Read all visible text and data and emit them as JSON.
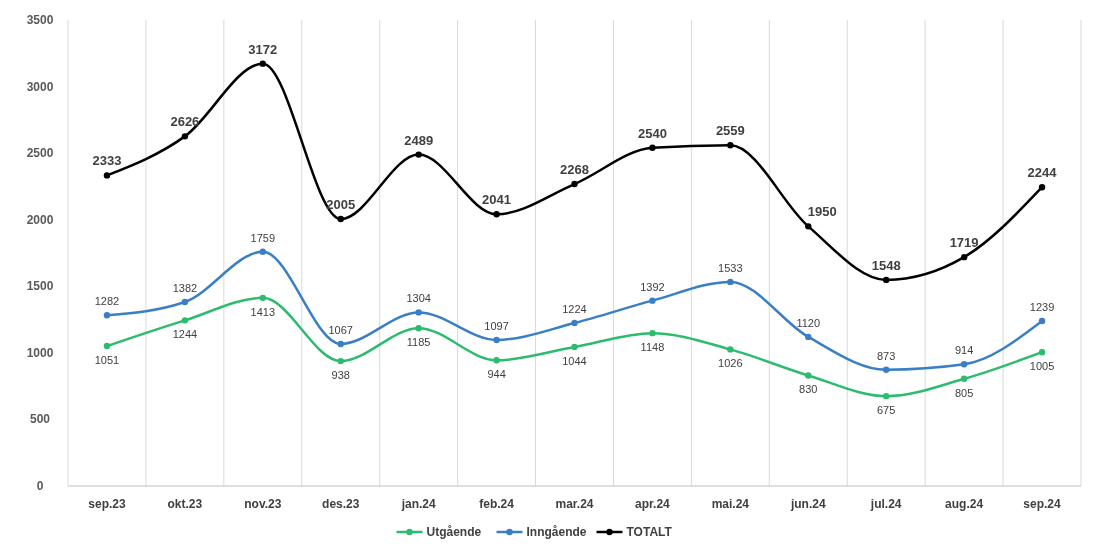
{
  "chart_data": {
    "type": "line",
    "categories": [
      "sep.23",
      "okt.23",
      "nov.23",
      "des.23",
      "jan.24",
      "feb.24",
      "mar.24",
      "apr.24",
      "mai.24",
      "jun.24",
      "jul.24",
      "aug.24",
      "sep.24"
    ],
    "series": [
      {
        "name": "Utgående",
        "color": "#2dbb6e",
        "values": [
          1051,
          1244,
          1413,
          938,
          1185,
          944,
          1044,
          1148,
          1026,
          830,
          675,
          805,
          1005
        ]
      },
      {
        "name": "Inngående",
        "color": "#3a7fc4",
        "values": [
          1282,
          1382,
          1759,
          1067,
          1304,
          1097,
          1224,
          1392,
          1533,
          1120,
          873,
          914,
          1239
        ]
      },
      {
        "name": "TOTALT",
        "color": "#000000",
        "values": [
          2333,
          2626,
          3172,
          2005,
          2489,
          2041,
          2268,
          2540,
          2559,
          1950,
          1548,
          1719,
          2244
        ]
      }
    ],
    "ylim": [
      0,
      3500
    ],
    "yticks": [
      0,
      500,
      1000,
      1500,
      2000,
      2500,
      3000,
      3500
    ],
    "grid": "x",
    "legend": "bottom",
    "marker": "circle",
    "line_style": "solid",
    "data_labels": true
  }
}
